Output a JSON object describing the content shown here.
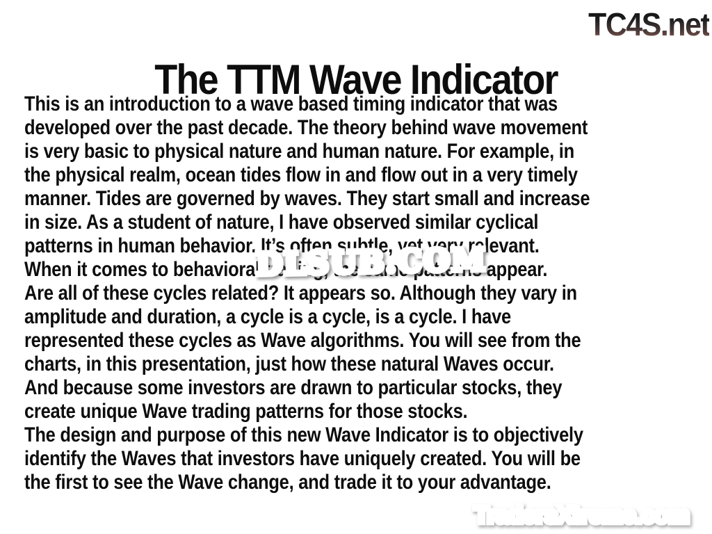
{
  "slide": {
    "title": "The TTM Wave Indicator",
    "body_lines": [
      "This is an introduction to a wave based timing indicator that was",
      "developed over the past decade. The theory behind wave movement",
      "is very basic to physical nature and human nature. For example, in",
      "the physical realm, ocean tides flow in and flow out in a very timely",
      "manner. Tides are governed by waves. They start small and increase",
      "in size. As a student of nature, I have observed similar cyclical",
      "patterns in human behavior. It’s often subtle, yet very relevant.",
      "When it comes to behavioral trading, the same patterns appear.",
      "Are all of these cycles related? It appears so. Although they vary in",
      "amplitude and duration, a cycle is a cycle, is a cycle. I have",
      "represented these cycles as Wave algorithms. You will see from the",
      "charts, in this presentation, just how these natural Waves occur.",
      "And because some investors are drawn to particular stocks, they",
      "create unique Wave trading patterns for those stocks.",
      "The design and purpose of this new Wave Indicator is to objectively",
      "identify the Waves that investors have uniquely created. You will be",
      "the first to see the Wave change, and trade it to your advantage."
    ]
  },
  "watermarks": {
    "top_right": "TC4S.net",
    "center": "DLSUB.COM",
    "bottom_right": "TradersXtreme.com"
  },
  "colors": {
    "body_text": "#0d0d0d",
    "dlsub_red": "#c1272d",
    "tradersxtreme_red": "#cc5a60",
    "tc4s_gradient_top": "#101010",
    "tc4s_gradient_bottom": "#a3685f"
  }
}
